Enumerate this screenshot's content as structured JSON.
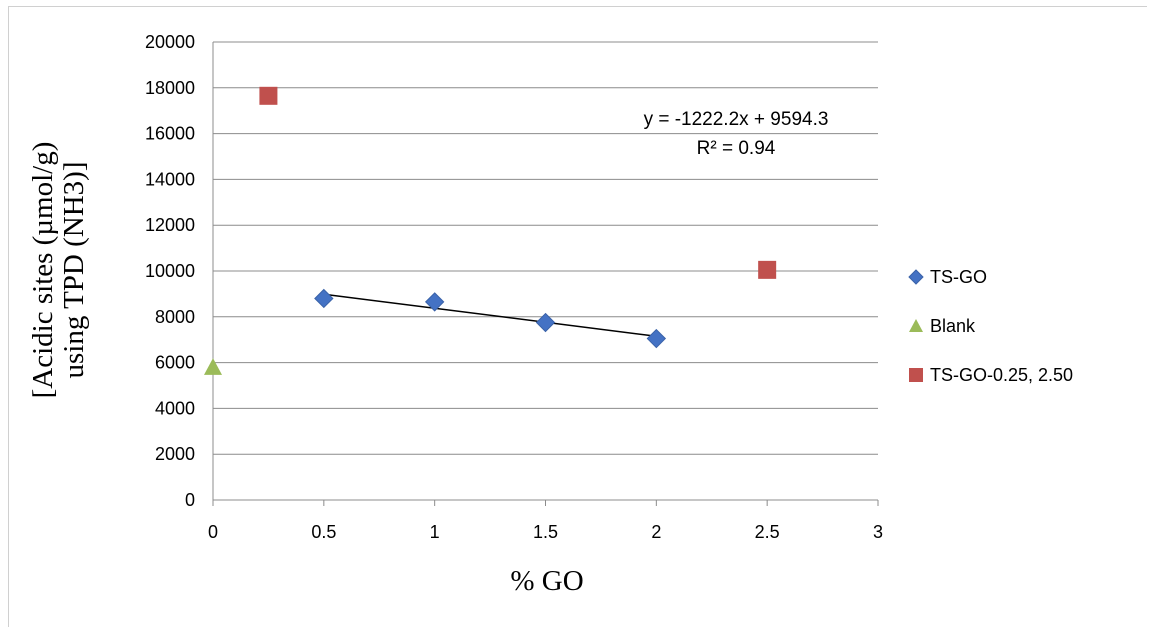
{
  "chart_data": {
    "type": "scatter",
    "title": "",
    "xlabel": "% GO",
    "ylabel_lines": [
      "[Acidic sites (µmol/g)",
      "using TPD (NH3)]"
    ],
    "xlim": [
      0,
      3
    ],
    "ylim": [
      0,
      20000
    ],
    "x_ticks": [
      "0",
      "0.5",
      "1",
      "1.5",
      "2",
      "2.5",
      "3"
    ],
    "y_ticks": [
      "0",
      "2000",
      "4000",
      "6000",
      "8000",
      "10000",
      "12000",
      "14000",
      "16000",
      "18000",
      "20000"
    ],
    "grid": "horizontal",
    "legend_position": "right",
    "series": [
      {
        "name": "TS-GO",
        "marker": "diamond",
        "color": "#4472c4",
        "points": [
          [
            0.5,
            8800
          ],
          [
            1.0,
            8650
          ],
          [
            1.5,
            7750
          ],
          [
            2.0,
            7050
          ]
        ]
      },
      {
        "name": "Blank",
        "marker": "triangle",
        "color": "#9bbb59",
        "points": [
          [
            0,
            5800
          ]
        ]
      },
      {
        "name": "TS-GO-0.25, 2.50",
        "marker": "square",
        "color": "#c0504d",
        "points": [
          [
            0.25,
            17650
          ],
          [
            2.5,
            10050
          ]
        ]
      }
    ],
    "trendline": {
      "series": "TS-GO",
      "slope": -1222.2,
      "intercept": 9594.3,
      "x_range": [
        0.5,
        2.0
      ],
      "color": "#000000"
    },
    "annotation": {
      "equation": "y = -1222.2x + 9594.3",
      "r_squared": "R² = 0.94"
    }
  }
}
